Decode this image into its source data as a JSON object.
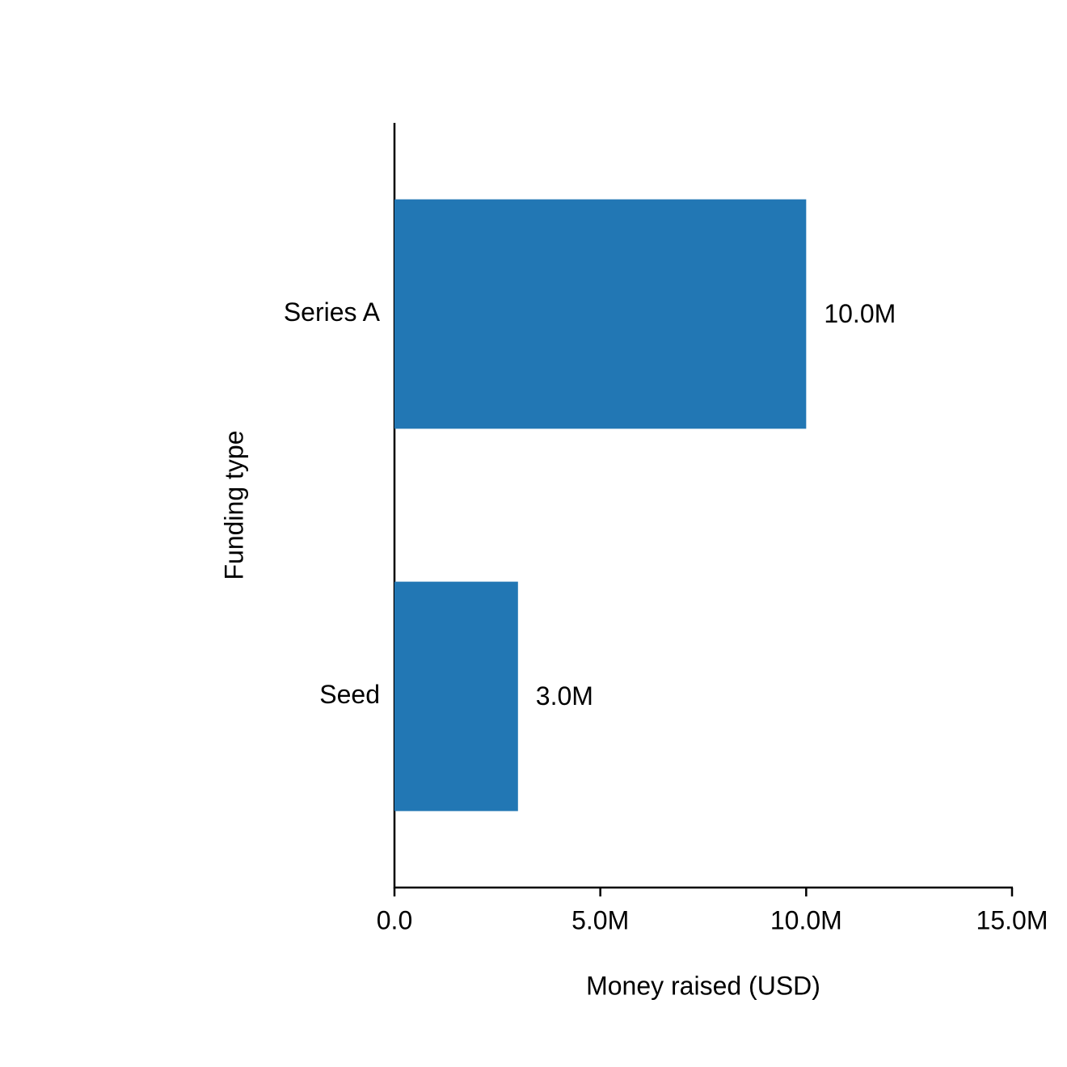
{
  "chart_data": {
    "type": "barh",
    "categories": [
      "Series A",
      "Seed"
    ],
    "values": [
      10000000,
      3000000
    ],
    "value_labels": [
      "10.0M",
      "3.0M"
    ],
    "color": "#2277b4",
    "xlabel": "Money raised (USD)",
    "ylabel": "Funding type",
    "xlim": [
      0,
      15000000
    ],
    "xticks": [
      {
        "value": 0,
        "label": "0.0"
      },
      {
        "value": 5000000,
        "label": "5.0M"
      },
      {
        "value": 10000000,
        "label": "10.0M"
      },
      {
        "value": 15000000,
        "label": "15.0M"
      }
    ],
    "grid": false
  }
}
